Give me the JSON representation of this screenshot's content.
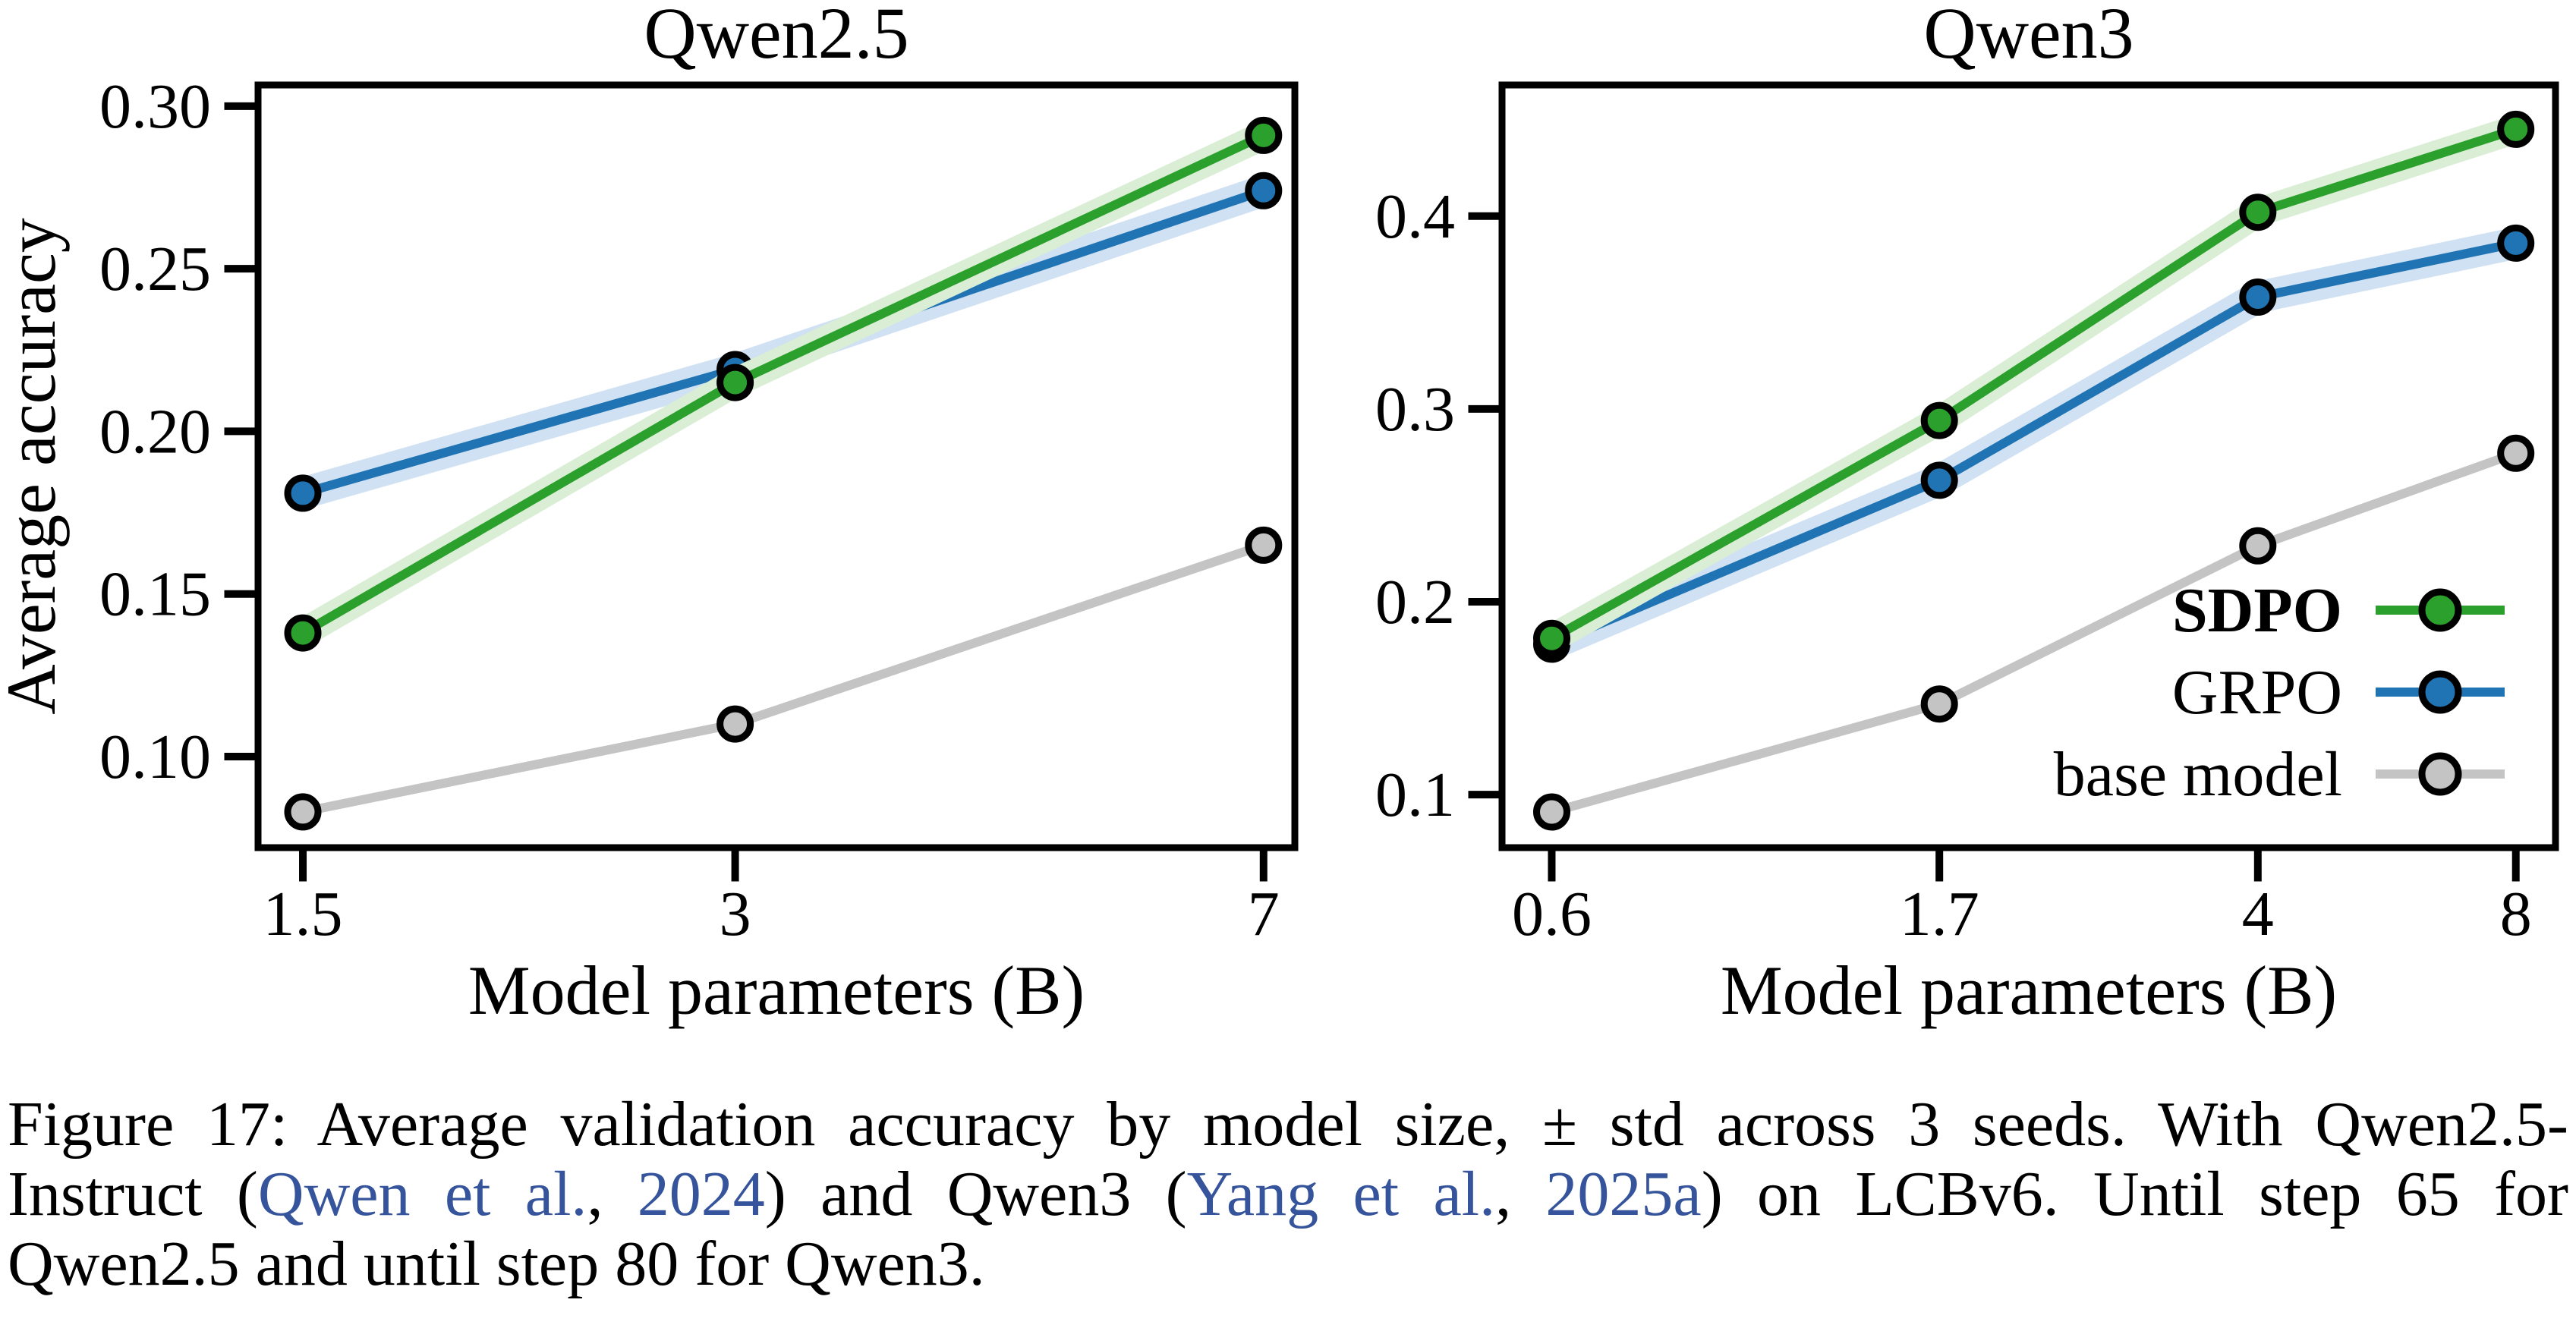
{
  "figure": {
    "caption": {
      "text_color": "#000000",
      "link_color": "#35549b",
      "lines": [
        {
          "justify": true,
          "segments": [
            {
              "type": "text",
              "text": "Figure 17: Average validation accuracy by model size, ± std across 3 seeds. With Qwen2.5-"
            }
          ]
        },
        {
          "justify": true,
          "segments": [
            {
              "type": "text",
              "text": "Instruct ("
            },
            {
              "type": "link",
              "text": "Qwen et al."
            },
            {
              "type": "text",
              "text": ", "
            },
            {
              "type": "link",
              "text": "2024"
            },
            {
              "type": "text",
              "text": ") and Qwen3 ("
            },
            {
              "type": "link",
              "text": "Yang et al."
            },
            {
              "type": "text",
              "text": ", "
            },
            {
              "type": "link",
              "text": "2025a"
            },
            {
              "type": "text",
              "text": ") on LCBv6.  Until step 65 for"
            }
          ]
        },
        {
          "justify": false,
          "segments": [
            {
              "type": "text",
              "text": "Qwen2.5 and until step 80 for Qwen3."
            }
          ]
        }
      ]
    }
  },
  "chart_data": [
    {
      "type": "line",
      "title": "Qwen2.5",
      "xlabel": "Model parameters (B)",
      "ylabel": "Average accuracy",
      "x_scale": "log",
      "x": [
        1.5,
        3,
        7
      ],
      "x_tick_labels": [
        "1.5",
        "3",
        "7"
      ],
      "xlim": [
        1.396,
        7.36
      ],
      "ylim": [
        0.072,
        0.3065
      ],
      "y_ticks": [
        0.1,
        0.15,
        0.2,
        0.25,
        0.3
      ],
      "y_tick_labels": [
        "0.10",
        "0.15",
        "0.20",
        "0.25",
        "0.30"
      ],
      "grid": false,
      "series": [
        {
          "name": "SDPO",
          "color": "#2ca02c",
          "band_color": "#d9eed5",
          "values": [
            0.138,
            0.215,
            0.291
          ]
        },
        {
          "name": "GRPO",
          "color": "#2174b4",
          "band_color": "#cfe1f2",
          "values": [
            0.181,
            0.219,
            0.274
          ]
        },
        {
          "name": "base model",
          "color": "#c4c4c4",
          "band_color": null,
          "values": [
            0.083,
            0.11,
            0.165
          ]
        }
      ],
      "legend": null
    },
    {
      "type": "line",
      "title": "Qwen3",
      "xlabel": "Model parameters (B)",
      "ylabel": null,
      "x_scale": "log",
      "x": [
        0.6,
        1.7,
        4,
        8
      ],
      "x_tick_labels": [
        "0.6",
        "1.7",
        "4",
        "8"
      ],
      "xlim": [
        0.525,
        8.9
      ],
      "ylim": [
        0.0725,
        0.468
      ],
      "y_ticks": [
        0.1,
        0.2,
        0.3,
        0.4
      ],
      "y_tick_labels": [
        "0.1",
        "0.2",
        "0.3",
        "0.4"
      ],
      "grid": false,
      "series": [
        {
          "name": "SDPO",
          "color": "#2ca02c",
          "band_color": "#d9eed5",
          "values": [
            0.181,
            0.294,
            0.402,
            0.445
          ]
        },
        {
          "name": "GRPO",
          "color": "#2174b4",
          "band_color": "#cfe1f2",
          "values": [
            0.178,
            0.263,
            0.358,
            0.386
          ]
        },
        {
          "name": "base model",
          "color": "#c4c4c4",
          "band_color": null,
          "values": [
            0.091,
            0.147,
            0.229,
            0.277
          ]
        }
      ],
      "legend": {
        "position": "lower right",
        "entries": [
          {
            "label": "SDPO",
            "bold": true
          },
          {
            "label": "GRPO",
            "bold": false
          },
          {
            "label": "base model",
            "bold": false
          }
        ]
      }
    }
  ]
}
